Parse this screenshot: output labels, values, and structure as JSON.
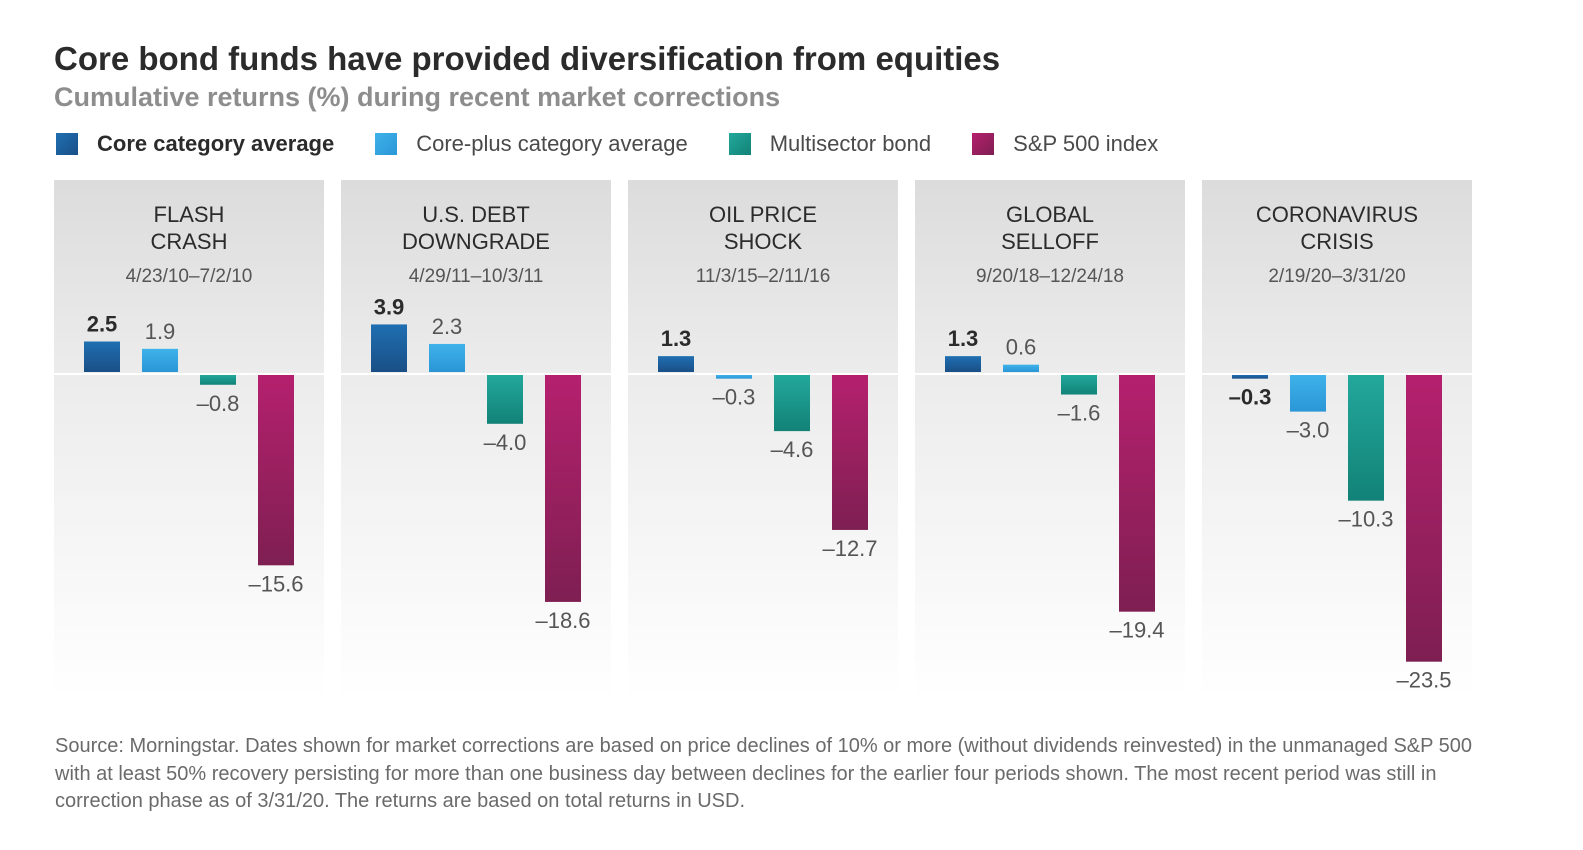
{
  "chart_data": {
    "type": "bar",
    "title": "Core bond funds have provided diversification from equities",
    "subtitle": "Cumulative returns (%) during recent market corrections",
    "ylabel": "Cumulative returns (%)",
    "ylim": [
      -23.5,
      3.9
    ],
    "legend_position": "top-left",
    "series": [
      {
        "name": "Core category average",
        "color": "#1f6fb2",
        "color_dark": "#1a4f86",
        "bold": true
      },
      {
        "name": "Core-plus category average",
        "color": "#3fb2ea",
        "color_dark": "#2a96d6",
        "bold": false
      },
      {
        "name": "Multisector bond",
        "color": "#23a89c",
        "color_dark": "#128277",
        "bold": false
      },
      {
        "name": "S&P 500 index",
        "color": "#b5206e",
        "color_dark": "#7e1f52",
        "bold": false
      }
    ],
    "categories": [
      {
        "name_lines": [
          "FLASH",
          "CRASH"
        ],
        "dates": "4/23/10–7/2/10",
        "values": [
          2.5,
          1.9,
          -0.8,
          -15.6
        ],
        "labels": [
          "2.5",
          "1.9",
          "–0.8",
          "–15.6"
        ]
      },
      {
        "name_lines": [
          "U.S. DEBT",
          "DOWNGRADE"
        ],
        "dates": "4/29/11–10/3/11",
        "values": [
          3.9,
          2.3,
          -4.0,
          -18.6
        ],
        "labels": [
          "3.9",
          "2.3",
          "–4.0",
          "–18.6"
        ]
      },
      {
        "name_lines": [
          "OIL PRICE",
          "SHOCK"
        ],
        "dates": "11/3/15–2/11/16",
        "values": [
          1.3,
          -0.3,
          -4.6,
          -12.7
        ],
        "labels": [
          "1.3",
          "–0.3",
          "–4.6",
          "–12.7"
        ]
      },
      {
        "name_lines": [
          "GLOBAL",
          "SELLOFF"
        ],
        "dates": "9/20/18–12/24/18",
        "values": [
          1.3,
          0.6,
          -1.6,
          -19.4
        ],
        "labels": [
          "1.3",
          "0.6",
          "–1.6",
          "–19.4"
        ]
      },
      {
        "name_lines": [
          "CORONAVIRUS",
          "CRISIS"
        ],
        "dates": "2/19/20–3/31/20",
        "values": [
          -0.3,
          -3.0,
          -10.3,
          -23.5
        ],
        "labels": [
          "–0.3",
          "–3.0",
          "–10.3",
          "–23.5"
        ]
      }
    ]
  },
  "footnote": "Source: Morningstar. Dates shown for market corrections are based on price declines of 10% or more (without dividends reinvested) in the unmanaged S&P 500 with at least 50% recovery persisting for more than one business day between declines for the earlier four periods shown. The most recent period was still in correction phase as of 3/31/20. The returns are based on total returns in USD."
}
